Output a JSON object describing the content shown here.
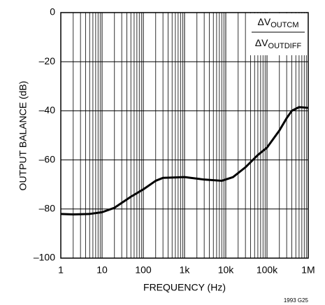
{
  "chart_data": {
    "type": "line",
    "x_label": "FREQUENCY (Hz)",
    "y_label": "OUTPUT BALANCE (dB)",
    "x": [
      1,
      2,
      5,
      10,
      20,
      50,
      100,
      200,
      300,
      1000,
      3000,
      8000,
      15000,
      30000,
      60000,
      100000,
      200000,
      300000,
      400000,
      600000,
      1000000
    ],
    "series": [
      {
        "color": "#000000",
        "values": [
          -82,
          -82.2,
          -82,
          -81.3,
          -79.5,
          -75,
          -72,
          -68.5,
          -67.3,
          -67,
          -68,
          -68.5,
          -67,
          -63,
          -58,
          -55,
          -48,
          -43,
          -40,
          -38.5,
          -38.8
        ]
      }
    ],
    "xscale": "log",
    "xlim": [
      1,
      1000000
    ],
    "xticks": [
      1,
      10,
      100,
      {
        "value": 1000,
        "label": "1k"
      },
      {
        "value": 10000,
        "label": "10k"
      },
      {
        "value": 100000,
        "label": "100k"
      },
      {
        "value": 1000000,
        "label": "1M"
      }
    ],
    "ylim": [
      -100,
      0
    ],
    "yticks": [
      {
        "value": -100,
        "label": "–100"
      },
      {
        "value": -80,
        "label": "–80"
      },
      {
        "value": -60,
        "label": "–60"
      },
      {
        "value": -40,
        "label": "–40"
      },
      {
        "value": -20,
        "label": "–20"
      },
      0
    ],
    "grid": true,
    "minor_grid": true,
    "annotation": {
      "numerator": [
        "ΔV",
        "OUTCM"
      ],
      "denominator": [
        "ΔV",
        "OUTDIFF"
      ]
    },
    "footnote": "1993 G25"
  }
}
